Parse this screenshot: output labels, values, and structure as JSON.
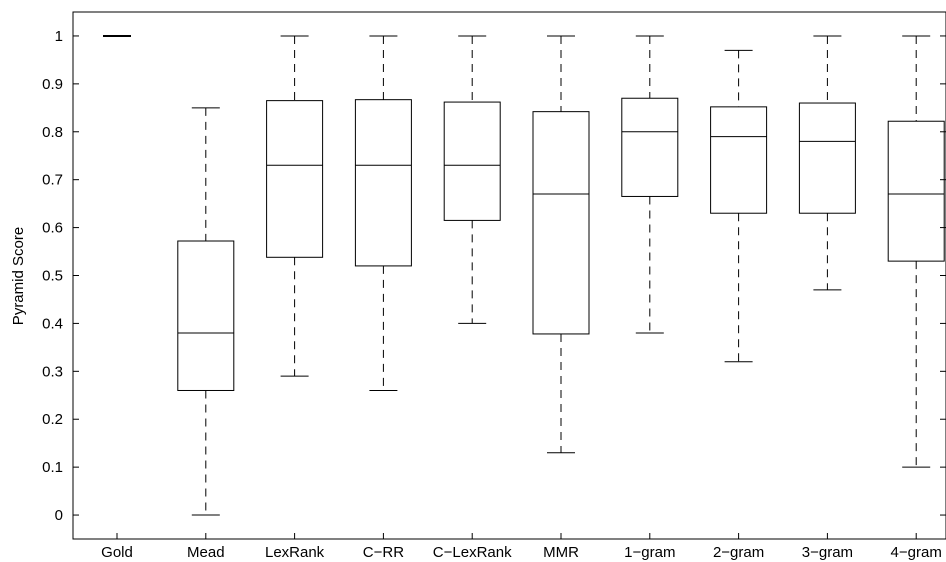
{
  "chart_data": {
    "type": "box",
    "title": "",
    "xlabel": "",
    "ylabel": "Pyramid Score",
    "ylim": [
      -0.05,
      1.05
    ],
    "yticks": [
      "0",
      "0.1",
      "0.2",
      "0.3",
      "0.4",
      "0.5",
      "0.6",
      "0.7",
      "0.8",
      "0.9",
      "1"
    ],
    "grid": false,
    "categories": [
      "Gold",
      "Mead",
      "LexRank",
      "C−RR",
      "C−LexRank",
      "MMR",
      "1−gram",
      "2−gram",
      "3−gram",
      "4−gram"
    ],
    "boxes": [
      {
        "min": 1.0,
        "q1": 1.0,
        "median": 1.0,
        "q3": 1.0,
        "max": 1.0
      },
      {
        "min": 0.0,
        "q1": 0.26,
        "median": 0.38,
        "q3": 0.572,
        "max": 0.85
      },
      {
        "min": 0.29,
        "q1": 0.538,
        "median": 0.73,
        "q3": 0.865,
        "max": 1.0
      },
      {
        "min": 0.26,
        "q1": 0.52,
        "median": 0.73,
        "q3": 0.867,
        "max": 1.0
      },
      {
        "min": 0.4,
        "q1": 0.615,
        "median": 0.73,
        "q3": 0.862,
        "max": 1.0
      },
      {
        "min": 0.13,
        "q1": 0.378,
        "median": 0.67,
        "q3": 0.842,
        "max": 1.0
      },
      {
        "min": 0.38,
        "q1": 0.665,
        "median": 0.8,
        "q3": 0.87,
        "max": 1.0
      },
      {
        "min": 0.32,
        "q1": 0.63,
        "median": 0.79,
        "q3": 0.852,
        "max": 0.97
      },
      {
        "min": 0.47,
        "q1": 0.63,
        "median": 0.78,
        "q3": 0.86,
        "max": 1.0
      },
      {
        "min": 0.1,
        "q1": 0.53,
        "median": 0.67,
        "q3": 0.822,
        "max": 1.0
      }
    ]
  }
}
